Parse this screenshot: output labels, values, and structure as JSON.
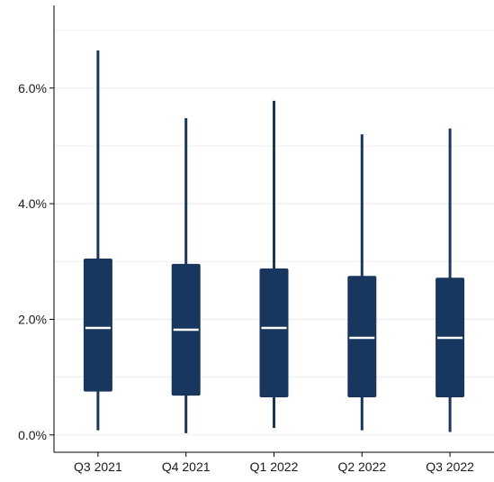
{
  "chart_data": {
    "type": "boxplot",
    "title": "",
    "xlabel": "",
    "ylabel": "",
    "ylim": [
      -0.003,
      0.0743
    ],
    "y_ticks": [
      0.0,
      0.02,
      0.04,
      0.06
    ],
    "y_tick_labels": [
      "0.0%",
      "2.0%",
      "4.0%",
      "6.0%"
    ],
    "grid": {
      "horizontal": true,
      "vertical": false
    },
    "legend": "none",
    "colors": {
      "box": "#17375e",
      "median": "#ffffff",
      "grid": "#ebebeb",
      "axis": "#000000",
      "text": "#1a1a1a"
    },
    "categories": [
      "Q3 2021",
      "Q4 2021",
      "Q1 2022",
      "Q2 2022",
      "Q3 2022"
    ],
    "boxes": [
      {
        "min": 0.0008,
        "q1": 0.0075,
        "median": 0.0185,
        "q3": 0.0305,
        "max": 0.0665
      },
      {
        "min": 0.0003,
        "q1": 0.0068,
        "median": 0.0182,
        "q3": 0.0296,
        "max": 0.0548
      },
      {
        "min": 0.0012,
        "q1": 0.0065,
        "median": 0.0185,
        "q3": 0.0288,
        "max": 0.0578
      },
      {
        "min": 0.0008,
        "q1": 0.0065,
        "median": 0.0168,
        "q3": 0.0275,
        "max": 0.052
      },
      {
        "min": 0.0005,
        "q1": 0.0065,
        "median": 0.0168,
        "q3": 0.0272,
        "max": 0.053
      }
    ]
  }
}
